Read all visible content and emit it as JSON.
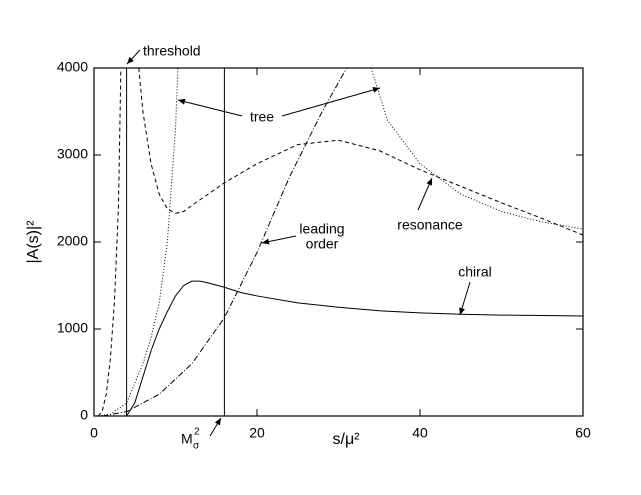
{
  "chart_data": {
    "type": "line",
    "x_label": "s/μ²",
    "y_label": "|A(s)|²",
    "xlim": [
      0,
      60
    ],
    "ylim": [
      0,
      4000
    ],
    "xticks": [
      0,
      20,
      40,
      60
    ],
    "yticks": [
      0,
      1000,
      2000,
      3000,
      4000
    ],
    "vlines": [
      4,
      16
    ],
    "m_label": {
      "main": "M",
      "sub": "σ",
      "sup": "2"
    },
    "annotations": [
      "threshold",
      "tree",
      "leading",
      "order",
      "resonance",
      "chiral"
    ],
    "series": [
      {
        "color": "#000000",
        "dash": "none",
        "x": [
          4,
          5,
          6,
          7,
          8,
          9,
          10,
          11,
          12,
          13,
          14,
          16,
          18,
          20,
          25,
          30,
          35,
          40,
          45,
          50,
          55,
          60
        ],
        "values": [
          0,
          150,
          450,
          750,
          1000,
          1200,
          1380,
          1500,
          1550,
          1550,
          1530,
          1480,
          1420,
          1380,
          1300,
          1250,
          1210,
          1185,
          1170,
          1160,
          1155,
          1150
        ]
      },
      {
        "color": "#000000",
        "dash": "4 3",
        "x": [
          0.5,
          1,
          1.5,
          2,
          2.5,
          3,
          3.3,
          null,
          5.5,
          6,
          7,
          8,
          9,
          10,
          11,
          12,
          14,
          16,
          20,
          25,
          30,
          35,
          40,
          45,
          50,
          55,
          60
        ],
        "values": [
          0,
          50,
          250,
          650,
          1300,
          2400,
          4000,
          null,
          4000,
          3500,
          2900,
          2550,
          2380,
          2330,
          2350,
          2420,
          2550,
          2680,
          2900,
          3120,
          3170,
          3050,
          2830,
          2640,
          2450,
          2270,
          2080
        ]
      },
      {
        "color": "#000000",
        "dash": "1 2",
        "x": [
          0.5,
          2,
          4,
          6,
          7,
          8,
          9,
          10,
          10.3,
          null,
          34,
          36,
          40,
          45,
          50,
          55,
          60
        ],
        "values": [
          0,
          20,
          150,
          600,
          900,
          1300,
          2000,
          3300,
          4000,
          null,
          4000,
          3400,
          2900,
          2550,
          2350,
          2230,
          2150
        ]
      },
      {
        "color": "#000000",
        "dash": "6 2 1 2",
        "x": [
          1,
          4,
          8,
          12,
          16,
          20,
          24,
          28,
          31
        ],
        "values": [
          0,
          50,
          250,
          600,
          1130,
          1880,
          2750,
          3500,
          4000
        ]
      }
    ]
  }
}
